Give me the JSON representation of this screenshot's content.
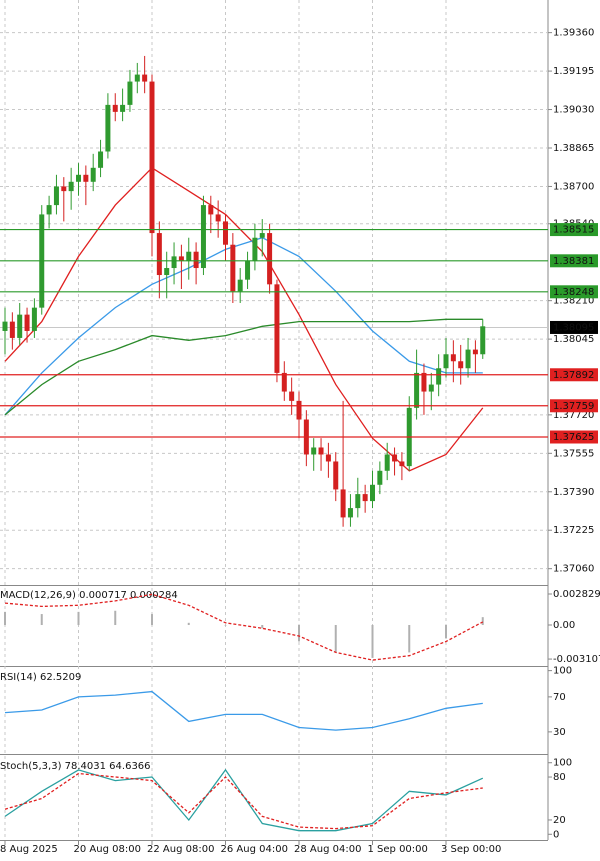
{
  "chart_data": [
    {
      "type": "candlestick",
      "grid": true,
      "up_color": "#2f9a2f",
      "down_color": "#d42020",
      "ylim": [
        1.3699,
        1.395
      ],
      "yticks": [
        {
          "value": 1.3936,
          "label": "1.39360"
        },
        1.39195,
        {
          "value": 1.3903,
          "label": "1.39030"
        },
        1.38865,
        {
          "value": 1.387,
          "label": "1.38700"
        },
        {
          "value": 1.3854,
          "label": "1.38540"
        },
        {
          "value": 1.3821,
          "label": "1.38210"
        },
        1.38045,
        {
          "value": 1.3772,
          "label": "1.37720"
        },
        1.37555,
        {
          "value": 1.3739,
          "label": "1.37390"
        },
        1.37225,
        {
          "value": 1.3706,
          "label": "1.37060"
        }
      ],
      "categories": [
        "8 Aug 2025",
        null,
        null,
        null,
        null,
        null,
        null,
        null,
        null,
        null,
        "20 Aug 08:00",
        null,
        null,
        null,
        null,
        null,
        null,
        null,
        null,
        null,
        "22 Aug 08:00",
        null,
        null,
        null,
        null,
        null,
        null,
        null,
        null,
        null,
        "26 Aug 04:00",
        null,
        null,
        null,
        null,
        null,
        null,
        null,
        null,
        null,
        "28 Aug 04:00",
        null,
        null,
        null,
        null,
        null,
        null,
        null,
        null,
        null,
        "1 Sep 00:00",
        null,
        null,
        null,
        null,
        null,
        null,
        null,
        null,
        null,
        "3 Sep 00:00",
        null,
        null,
        null,
        null,
        null
      ],
      "open": [
        1.3808,
        1.3812,
        1.3805,
        1.3815,
        1.3808,
        1.3818,
        1.3858,
        1.3862,
        1.387,
        1.3868,
        1.3872,
        1.3875,
        1.3872,
        1.3878,
        1.3885,
        1.3905,
        1.3902,
        1.3905,
        1.3915,
        1.3918,
        1.3915,
        1.385,
        1.3832,
        1.3835,
        1.384,
        1.3838,
        1.3842,
        1.3835,
        1.3862,
        1.3858,
        1.3855,
        1.3845,
        1.3825,
        1.383,
        1.3838,
        1.3848,
        1.385,
        1.3828,
        1.379,
        1.3782,
        1.3778,
        1.377,
        1.3755,
        1.3758,
        1.3755,
        1.3752,
        1.374,
        1.3728,
        1.3732,
        1.3738,
        1.3735,
        1.3742,
        1.3748,
        1.3755,
        1.3752,
        1.375,
        1.3775,
        1.379,
        1.3782,
        1.3785,
        1.3792,
        1.3798,
        1.3795,
        1.3792,
        1.38,
        1.3798
      ],
      "high": [
        1.3818,
        1.3816,
        1.382,
        1.3818,
        1.3822,
        1.3862,
        1.3866,
        1.3875,
        1.3874,
        1.3878,
        1.388,
        1.3879,
        1.3884,
        1.389,
        1.391,
        1.391,
        1.3912,
        1.392,
        1.3923,
        1.3926,
        1.3918,
        1.3855,
        1.3842,
        1.3846,
        1.3845,
        1.3848,
        1.3846,
        1.3866,
        1.3866,
        1.3864,
        1.3858,
        1.385,
        1.3835,
        1.3842,
        1.3854,
        1.3856,
        1.3854,
        1.383,
        1.3795,
        1.3788,
        1.3782,
        1.3774,
        1.3762,
        1.3762,
        1.376,
        1.3756,
        1.3778,
        1.3738,
        1.3745,
        1.3742,
        1.3748,
        1.3752,
        1.376,
        1.3758,
        1.3756,
        1.378,
        1.38,
        1.3794,
        1.379,
        1.3798,
        1.3805,
        1.3804,
        1.3802,
        1.3805,
        1.3804,
        1.3813
      ],
      "low": [
        1.3798,
        1.38,
        1.3802,
        1.3803,
        1.3805,
        1.3815,
        1.3852,
        1.3858,
        1.3855,
        1.386,
        1.3866,
        1.3862,
        1.3868,
        1.3874,
        1.3882,
        1.3898,
        1.3898,
        1.3902,
        1.391,
        1.391,
        1.384,
        1.3822,
        1.3822,
        1.3828,
        1.3826,
        1.383,
        1.3828,
        1.3832,
        1.385,
        1.3848,
        1.3838,
        1.382,
        1.382,
        1.3826,
        1.3834,
        1.384,
        1.3824,
        1.3786,
        1.3778,
        1.3772,
        1.3762,
        1.375,
        1.3748,
        1.3748,
        1.3745,
        1.3735,
        1.3724,
        1.3724,
        1.3728,
        1.373,
        1.3732,
        1.3738,
        1.3744,
        1.3746,
        1.3744,
        1.3748,
        1.377,
        1.3772,
        1.3774,
        1.378,
        1.3788,
        1.3786,
        1.3785,
        1.3788,
        1.379,
        1.3796
      ],
      "close": [
        1.3812,
        1.3805,
        1.3815,
        1.3808,
        1.3818,
        1.3858,
        1.3862,
        1.387,
        1.3868,
        1.3872,
        1.3875,
        1.3872,
        1.3878,
        1.3885,
        1.3905,
        1.3902,
        1.3905,
        1.3915,
        1.3918,
        1.3915,
        1.385,
        1.3832,
        1.3835,
        1.384,
        1.3838,
        1.3842,
        1.3835,
        1.3862,
        1.3858,
        1.3855,
        1.3845,
        1.3825,
        1.383,
        1.3838,
        1.3848,
        1.385,
        1.3828,
        1.379,
        1.3782,
        1.3778,
        1.377,
        1.3755,
        1.3758,
        1.3755,
        1.3752,
        1.374,
        1.3728,
        1.3732,
        1.3738,
        1.3735,
        1.3742,
        1.3748,
        1.3755,
        1.3752,
        1.375,
        1.3775,
        1.379,
        1.3782,
        1.3785,
        1.3792,
        1.3798,
        1.3795,
        1.3792,
        1.38,
        1.3798,
        1.381
      ],
      "series": [
        {
          "type": "line",
          "color": "#e02020",
          "x": [
            0,
            5,
            10,
            15,
            20,
            25,
            30,
            35,
            40,
            45,
            50,
            55,
            60,
            65
          ],
          "values": [
            1.3795,
            1.3812,
            1.384,
            1.3862,
            1.3878,
            1.3868,
            1.3858,
            1.3842,
            1.3815,
            1.3785,
            1.3762,
            1.3748,
            1.3755,
            1.3775
          ]
        },
        {
          "type": "line",
          "color": "#3a9ae8",
          "x": [
            0,
            5,
            10,
            15,
            20,
            25,
            30,
            35,
            40,
            45,
            50,
            55,
            60,
            65
          ],
          "values": [
            1.3772,
            1.379,
            1.3805,
            1.3818,
            1.3828,
            1.3835,
            1.3843,
            1.3848,
            1.384,
            1.3825,
            1.3808,
            1.3795,
            1.379,
            1.379
          ]
        },
        {
          "type": "line",
          "color": "#2a8a2a",
          "x": [
            0,
            5,
            10,
            15,
            20,
            25,
            30,
            35,
            40,
            45,
            50,
            55,
            60,
            65
          ],
          "values": [
            1.3772,
            1.3785,
            1.3795,
            1.38,
            1.3806,
            1.3804,
            1.3806,
            1.381,
            1.3812,
            1.3812,
            1.3812,
            1.3812,
            1.3813,
            1.3813
          ]
        }
      ],
      "levels": [
        {
          "value": 1.38515,
          "color": "#2a9a2a"
        },
        {
          "value": 1.38381,
          "color": "#2a9a2a"
        },
        {
          "value": 1.38248,
          "color": "#2a9a2a"
        },
        {
          "value": 1.37892,
          "color": "#e02020"
        },
        {
          "value": 1.37759,
          "color": "#e02020"
        },
        {
          "value": 1.37625,
          "color": "#e02020"
        }
      ],
      "current_price": 1.38095
    },
    {
      "type": "line",
      "title": "MACD(12,26,9) 0.000717 0.000284",
      "ylim": [
        -0.00374,
        0.00356
      ],
      "yticks": [
        0.002829,
        {
          "value": 0,
          "label": "0.00"
        },
        -0.003107
      ],
      "series": [
        {
          "type": "bar",
          "color": "#b0b0b0",
          "x": [
            0,
            5,
            10,
            15,
            20,
            25,
            30,
            35,
            40,
            45,
            50,
            55,
            60,
            65
          ],
          "values": [
            0.0012,
            0.001,
            0.0012,
            0.0013,
            0.001,
            0.0002,
            0.0,
            -0.0003,
            -0.0015,
            -0.0025,
            -0.003,
            -0.0025,
            -0.0012,
            0.000717
          ]
        },
        {
          "type": "line",
          "dashed": true,
          "color": "#e02020",
          "x": [
            0,
            5,
            10,
            15,
            20,
            25,
            30,
            35,
            40,
            45,
            50,
            55,
            60,
            65
          ],
          "values": [
            0.002,
            0.0017,
            0.0018,
            0.0022,
            0.0028,
            0.0018,
            0.0002,
            -0.0003,
            -0.001,
            -0.0025,
            -0.0032,
            -0.0028,
            -0.0015,
            0.000284
          ]
        }
      ]
    },
    {
      "type": "line",
      "title": "RSI(14) 62.5209",
      "ylim": [
        7,
        103
      ],
      "yticks": [
        100,
        70,
        30
      ],
      "series": [
        {
          "type": "line",
          "color": "#3a9ae8",
          "x": [
            0,
            5,
            10,
            15,
            20,
            25,
            30,
            35,
            40,
            45,
            50,
            55,
            60,
            65
          ],
          "values": [
            52,
            55,
            70,
            72,
            76,
            42,
            50,
            50,
            35,
            32,
            35,
            45,
            57,
            62.5209
          ]
        }
      ]
    },
    {
      "type": "line",
      "title": "Stoch(5,3,3) 78.4031 64.6366",
      "ylim": [
        -8,
        108
      ],
      "yticks": [
        100,
        80,
        20,
        0
      ],
      "series": [
        {
          "type": "line",
          "color": "#2aa0a0",
          "x": [
            0,
            5,
            10,
            15,
            20,
            25,
            30,
            35,
            40,
            45,
            50,
            55,
            60,
            65
          ],
          "values": [
            25,
            60,
            90,
            75,
            80,
            20,
            90,
            15,
            5,
            5,
            15,
            60,
            55,
            78.4031
          ]
        },
        {
          "type": "line",
          "dashed": true,
          "color": "#e02020",
          "x": [
            0,
            5,
            10,
            15,
            20,
            25,
            30,
            35,
            40,
            45,
            50,
            55,
            60,
            65
          ],
          "values": [
            35,
            50,
            85,
            80,
            75,
            30,
            80,
            25,
            10,
            8,
            12,
            50,
            58,
            64.6366
          ]
        }
      ]
    }
  ]
}
